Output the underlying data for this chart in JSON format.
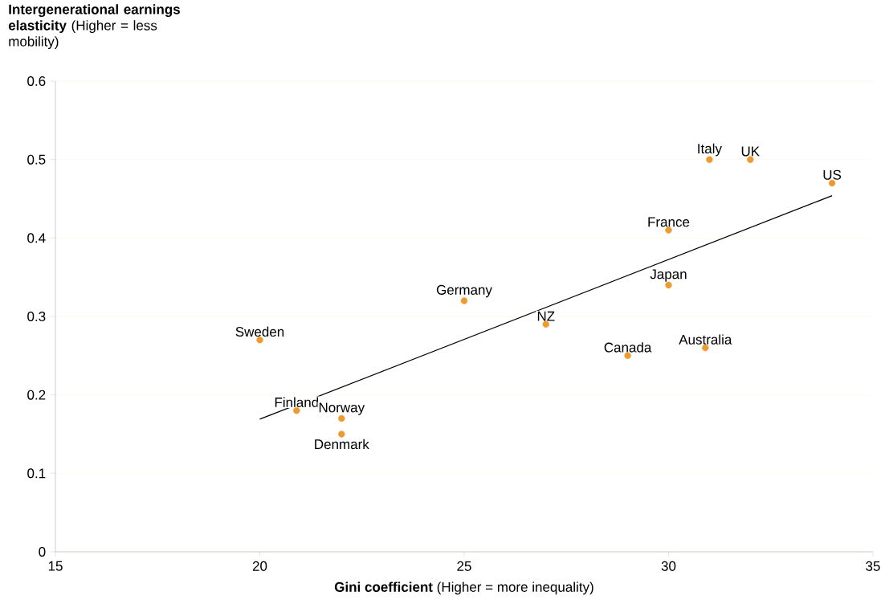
{
  "chart_data": {
    "type": "scatter",
    "xlabel": "**Gini coefficient** (Higher = more inequality)",
    "ylabel": "**Intergenerational earnings elasticity** (Higher = less  mobility)",
    "xlim": [
      15,
      35
    ],
    "xticks": [
      15,
      20,
      25,
      30,
      35
    ],
    "ylim": [
      0,
      0.6
    ],
    "yticks": [
      0,
      0.1,
      0.2,
      0.3,
      0.4,
      0.5,
      0.6
    ],
    "grid": "y",
    "series": [
      {
        "marker": "circle",
        "color": "#ed9a2f",
        "x": [
          20,
          20.9,
          22,
          22,
          25,
          27,
          29,
          30,
          30,
          30.9,
          31,
          32,
          34
        ],
        "values": [
          0.27,
          0.18,
          0.17,
          0.15,
          0.32,
          0.29,
          0.25,
          0.34,
          0.41,
          0.26,
          0.5,
          0.5,
          0.47
        ]
      },
      {
        "type": "line",
        "marker": "none",
        "color": "#000000",
        "x": [
          20,
          34
        ],
        "values": [
          0.169,
          0.454
        ]
      }
    ],
    "annotations": [
      {
        "text": "Sweden",
        "x": 20,
        "y": 0.27
      },
      {
        "text": "Finland",
        "x": 20.9,
        "y": 0.18
      },
      {
        "text": "Norway",
        "x": 22,
        "y": 0.17
      },
      {
        "text": "Denmark",
        "x": 22,
        "y": 0.15
      },
      {
        "text": "Germany",
        "x": 25,
        "y": 0.32
      },
      {
        "text": "NZ",
        "x": 27,
        "y": 0.29
      },
      {
        "text": "Canada",
        "x": 29,
        "y": 0.25
      },
      {
        "text": "Japan",
        "x": 30,
        "y": 0.34
      },
      {
        "text": "France",
        "x": 30,
        "y": 0.41
      },
      {
        "text": "Australia",
        "x": 30.9,
        "y": 0.26
      },
      {
        "text": "Italy",
        "x": 31,
        "y": 0.5
      },
      {
        "text": "UK",
        "x": 32,
        "y": 0.5
      },
      {
        "text": "US",
        "x": 34,
        "y": 0.47
      }
    ]
  }
}
